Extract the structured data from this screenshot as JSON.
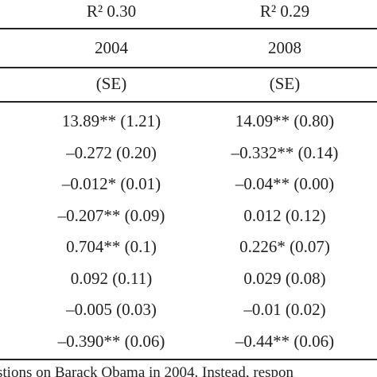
{
  "table": {
    "header": [
      [
        "R² 0.30",
        "R² 0.29"
      ],
      [
        "2004",
        "2008"
      ],
      [
        "(SE)",
        "(SE)"
      ]
    ],
    "rows": [
      [
        "13.89** (1.21)",
        "14.09** (0.80)"
      ],
      [
        "–0.272 (0.20)",
        "–0.332** (0.14)"
      ],
      [
        "–0.012* (0.01)",
        "–0.04** (0.00)"
      ],
      [
        "–0.207** (0.09)",
        "0.012 (0.12)"
      ],
      [
        "0.704** (0.1)",
        "0.226* (0.07)"
      ],
      [
        "0.092 (0.11)",
        "0.029 (0.08)"
      ],
      [
        "–0.005 (0.03)",
        "–0.01 (0.02)"
      ],
      [
        "–0.390** (0.06)",
        "–0.44** (0.06)"
      ]
    ],
    "note": "stions on Barack Obama in 2004. Instead, respon"
  }
}
